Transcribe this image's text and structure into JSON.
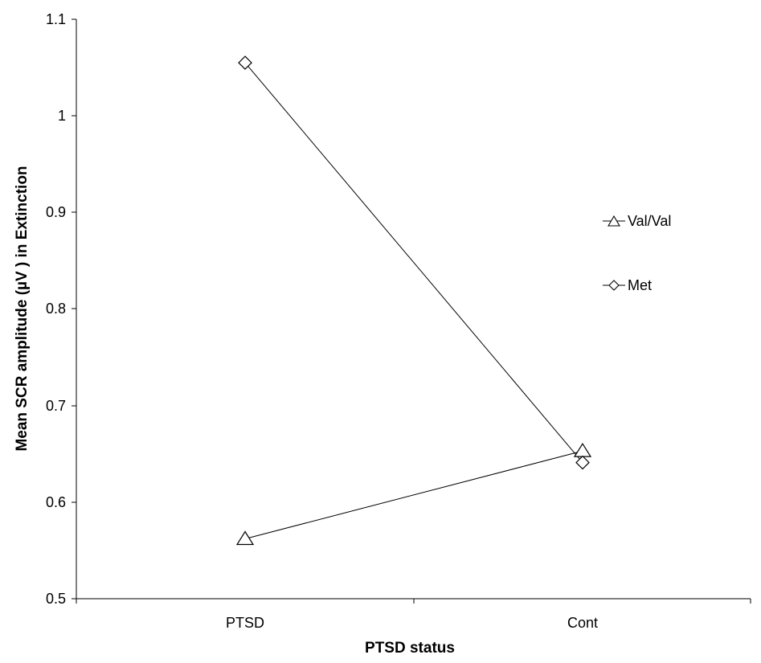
{
  "chart_data": {
    "type": "line",
    "title": "",
    "xlabel": "PTSD status",
    "ylabel": "Mean SCR amplitude (µV ) in Extinction",
    "categories": [
      "PTSD",
      "Cont"
    ],
    "ylim": [
      0.5,
      1.1
    ],
    "yticks": [
      "0.5",
      "0.6",
      "0.7",
      "0.8",
      "0.9",
      "1",
      "1.1"
    ],
    "grid": false,
    "legend_position": "right",
    "series": [
      {
        "name": "Val/Val",
        "marker": "triangle",
        "values": [
          0.562,
          0.653
        ]
      },
      {
        "name": "Met",
        "marker": "diamond",
        "values": [
          1.055,
          0.641
        ]
      }
    ]
  }
}
